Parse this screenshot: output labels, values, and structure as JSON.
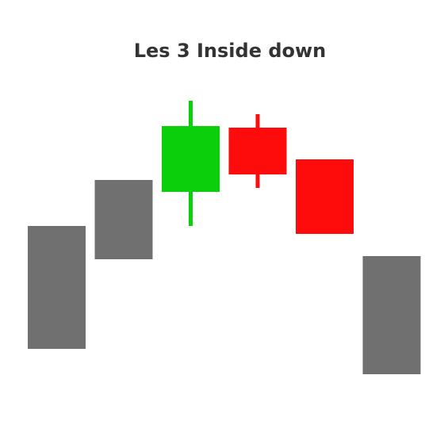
{
  "chart_data": {
    "type": "candlestick",
    "title": "Les 3 Inside down",
    "xlabel": "",
    "ylabel": "",
    "ylim": [
      0,
      420
    ],
    "grid": false,
    "legend": "none",
    "candles": [
      {
        "open": 60,
        "close": 215,
        "high": 215,
        "low": 60,
        "color": "#707070"
      },
      {
        "open": 173,
        "close": 273,
        "high": 273,
        "low": 173,
        "color": "#707070"
      },
      {
        "open": 258,
        "close": 341,
        "high": 373,
        "low": 215,
        "color": "#0ccf0c"
      },
      {
        "open": 339,
        "close": 280,
        "high": 356,
        "low": 263,
        "color": "#fe0c0c"
      },
      {
        "open": 299,
        "close": 205,
        "high": 299,
        "low": 205,
        "color": "#fe0c0c"
      },
      {
        "open": 177,
        "close": 28,
        "high": 177,
        "low": 28,
        "color": "#707070"
      }
    ]
  }
}
